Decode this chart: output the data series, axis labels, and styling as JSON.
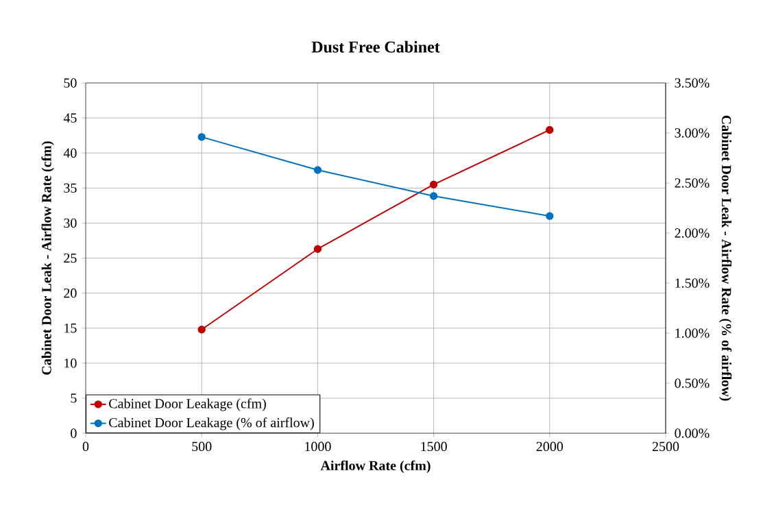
{
  "chart_data": {
    "type": "line",
    "title": "Dust Free Cabinet",
    "xlabel": "Airflow Rate (cfm)",
    "ylabel": "Cabinet Door Leak - Airflow Rate (cfm)",
    "y2label": "Cabinet Door Leak - Airflow Rate (% of airflow)",
    "x": [
      500,
      1000,
      1500,
      2000
    ],
    "series": [
      {
        "name": "Cabinet Door Leakage (cfm)",
        "color": "#c00000",
        "values": [
          14.8,
          26.3,
          35.5,
          43.3
        ]
      },
      {
        "name": "Cabinet Door Leakage (% of airflow)",
        "color": "#0070c0",
        "values": [
          2.96,
          2.63,
          2.37,
          2.17
        ],
        "axis": "y2"
      }
    ],
    "xlim": [
      0,
      2500
    ],
    "xticks": [
      0,
      500,
      1000,
      1500,
      2000,
      2500
    ],
    "ylim": [
      0,
      50
    ],
    "yticks": [
      0,
      5,
      10,
      15,
      20,
      25,
      30,
      35,
      40,
      45,
      50
    ],
    "y2lim": [
      0,
      3.5
    ],
    "y2ticks": [
      {
        "value": 0,
        "label": "0.00%"
      },
      {
        "value": 0.5,
        "label": "0.50%"
      },
      {
        "value": 1,
        "label": "1.00%"
      },
      {
        "value": 1.5,
        "label": "1.50%"
      },
      {
        "value": 2,
        "label": "2.00%"
      },
      {
        "value": 2.5,
        "label": "2.50%"
      },
      {
        "value": 3,
        "label": "3.00%"
      },
      {
        "value": 3.5,
        "label": "3.50%"
      }
    ],
    "grid": true,
    "legend": "bottom left",
    "marker": "circle",
    "line_style": "solid"
  }
}
